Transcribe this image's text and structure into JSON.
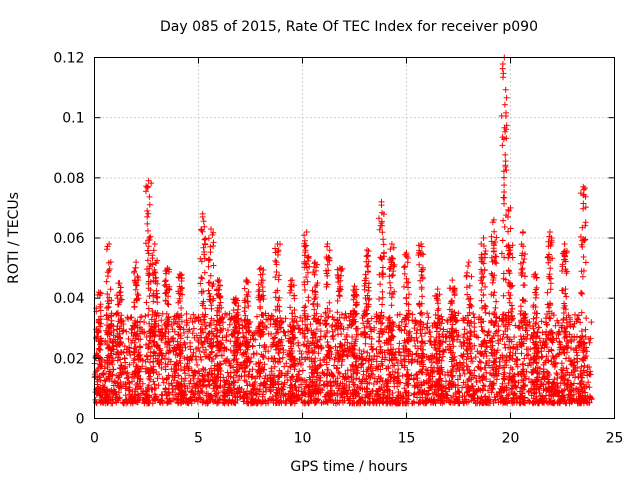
{
  "chart_data": {
    "type": "scatter",
    "title": "Day 085 of 2015, Rate Of TEC Index for receiver p090",
    "xlabel": "GPS time / hours",
    "ylabel": "ROTI / TECUs",
    "xlim": [
      0,
      25
    ],
    "ylim": [
      0,
      0.12
    ],
    "xticks": [
      0,
      5,
      10,
      15,
      20,
      25
    ],
    "xtick_labels": [
      "0",
      "5",
      "10",
      "15",
      "20",
      "25"
    ],
    "yticks": [
      0,
      0.02,
      0.04,
      0.06,
      0.08,
      0.1,
      0.12
    ],
    "ytick_labels": [
      "0",
      "0.02",
      "0.04",
      "0.06",
      "0.08",
      "0.1",
      "0.12"
    ],
    "grid": true,
    "marker": "+",
    "series": [
      {
        "name": "ROTI",
        "color": "#ff0000",
        "x_range": [
          0,
          23.9
        ],
        "baseline_range": [
          0.005,
          0.035
        ],
        "spikes": [
          {
            "x": 0.2,
            "y": 0.042
          },
          {
            "x": 0.7,
            "y": 0.058
          },
          {
            "x": 1.2,
            "y": 0.045
          },
          {
            "x": 2.0,
            "y": 0.052
          },
          {
            "x": 2.6,
            "y": 0.079
          },
          {
            "x": 2.9,
            "y": 0.058
          },
          {
            "x": 3.5,
            "y": 0.05
          },
          {
            "x": 4.1,
            "y": 0.048
          },
          {
            "x": 5.2,
            "y": 0.068
          },
          {
            "x": 5.6,
            "y": 0.063
          },
          {
            "x": 6.0,
            "y": 0.046
          },
          {
            "x": 6.8,
            "y": 0.04
          },
          {
            "x": 7.3,
            "y": 0.046
          },
          {
            "x": 8.0,
            "y": 0.05
          },
          {
            "x": 8.8,
            "y": 0.058
          },
          {
            "x": 9.5,
            "y": 0.046
          },
          {
            "x": 10.2,
            "y": 0.062
          },
          {
            "x": 10.6,
            "y": 0.052
          },
          {
            "x": 11.2,
            "y": 0.058
          },
          {
            "x": 11.8,
            "y": 0.05
          },
          {
            "x": 12.5,
            "y": 0.044
          },
          {
            "x": 13.1,
            "y": 0.056
          },
          {
            "x": 13.8,
            "y": 0.072
          },
          {
            "x": 14.3,
            "y": 0.058
          },
          {
            "x": 15.0,
            "y": 0.055
          },
          {
            "x": 15.7,
            "y": 0.058
          },
          {
            "x": 16.5,
            "y": 0.043
          },
          {
            "x": 17.2,
            "y": 0.046
          },
          {
            "x": 18.0,
            "y": 0.052
          },
          {
            "x": 18.7,
            "y": 0.06
          },
          {
            "x": 19.2,
            "y": 0.066
          },
          {
            "x": 19.7,
            "y": 0.12
          },
          {
            "x": 20.0,
            "y": 0.07
          },
          {
            "x": 20.6,
            "y": 0.062
          },
          {
            "x": 21.2,
            "y": 0.048
          },
          {
            "x": 21.9,
            "y": 0.062
          },
          {
            "x": 22.6,
            "y": 0.058
          },
          {
            "x": 23.5,
            "y": 0.077
          }
        ]
      }
    ]
  }
}
